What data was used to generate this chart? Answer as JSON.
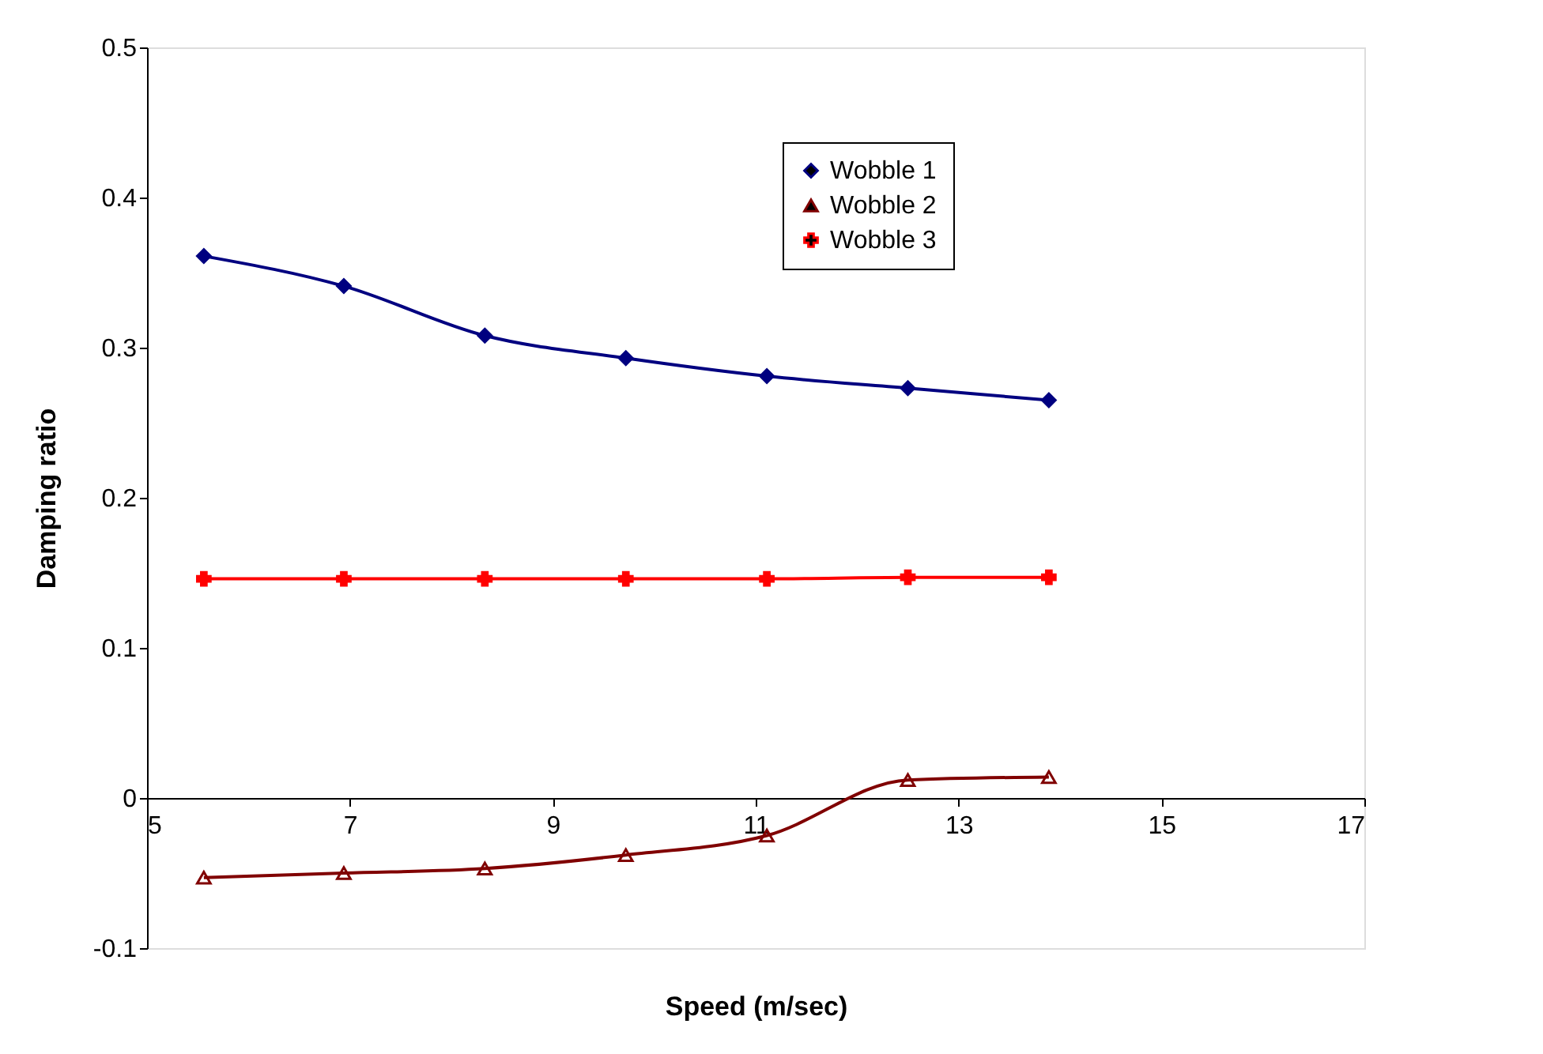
{
  "chart_data": {
    "type": "line",
    "xlabel": "Speed (m/sec)",
    "ylabel": "Damping ratio",
    "x": [
      5.56,
      6.94,
      8.33,
      9.72,
      11.11,
      12.5,
      13.89
    ],
    "series": [
      {
        "name": "Wobble 1",
        "color": "#000080",
        "marker": "diamond",
        "values": [
          0.361,
          0.341,
          0.308,
          0.293,
          0.281,
          0.273,
          0.265
        ]
      },
      {
        "name": "Wobble 2",
        "color": "#800000",
        "marker": "triangle",
        "values": [
          -0.053,
          -0.05,
          -0.047,
          -0.038,
          -0.025,
          0.012,
          0.014
        ]
      },
      {
        "name": "Wobble 3",
        "color": "#ff0000",
        "marker": "cross",
        "values": [
          0.146,
          0.146,
          0.146,
          0.146,
          0.146,
          0.147,
          0.147
        ]
      }
    ],
    "xlim": [
      5,
      17
    ],
    "xticks": [
      5,
      7,
      9,
      11,
      13,
      15,
      17
    ],
    "ylim": [
      -0.1,
      0.5
    ],
    "yticks": [
      -0.1,
      0,
      0.1,
      0.2,
      0.3,
      0.4,
      0.5
    ],
    "grid": false,
    "legend": "top right",
    "line_style": "solid"
  }
}
